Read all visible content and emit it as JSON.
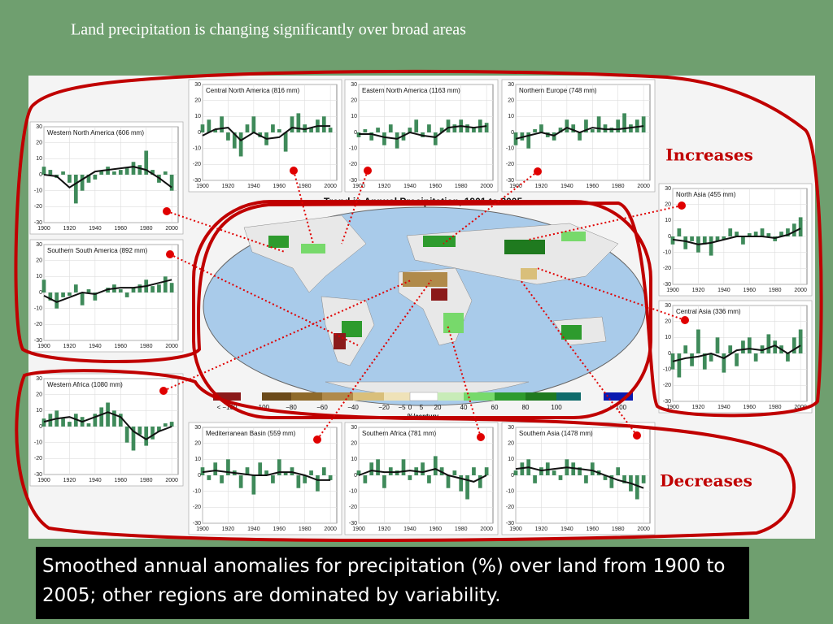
{
  "slide": {
    "title": "Land precipitation is changing significantly over broad areas",
    "caption": "Smoothed annual anomalies for precipitation (%) over land from 1900 to 2005; other regions are dominated by variability.",
    "annotations": [
      "Increases",
      "Decreases"
    ]
  },
  "map": {
    "title": "Trend in Annual Precipitation, 1901 to 2005",
    "axis_label": "%/century",
    "legend_labels": [
      "< −100",
      "−100",
      "−80",
      "−60",
      "−40",
      "−20",
      "−5",
      "0",
      "5",
      "20",
      "40",
      "60",
      "80",
      "100",
      "> 100"
    ]
  },
  "chart_data": [
    {
      "type": "bar",
      "title": "Western North America (606 mm)",
      "color": "#3f8a5a",
      "line_color": "#111111",
      "x": [
        1900,
        1905,
        1910,
        1915,
        1920,
        1925,
        1930,
        1935,
        1940,
        1945,
        1950,
        1955,
        1960,
        1965,
        1970,
        1975,
        1980,
        1985,
        1990,
        1995,
        2000
      ],
      "values": [
        5,
        3,
        -2,
        2,
        -5,
        -18,
        -10,
        -5,
        -3,
        2,
        5,
        2,
        3,
        4,
        8,
        6,
        15,
        3,
        -5,
        2,
        -10
      ],
      "smooth_x": [
        1900,
        1910,
        1920,
        1930,
        1940,
        1950,
        1960,
        1970,
        1980,
        1990,
        2000
      ],
      "smooth_values": [
        0,
        -1,
        -8,
        -3,
        2,
        3,
        4,
        5,
        3,
        -2,
        -8
      ],
      "xlim": [
        1900,
        2005
      ],
      "ylim": [
        -30,
        30
      ],
      "xticks": [
        1900,
        1920,
        1940,
        1960,
        1980,
        2000
      ],
      "yticks": [
        -30,
        -20,
        -10,
        0,
        10,
        20,
        30
      ]
    },
    {
      "type": "bar",
      "title": "Southern South America (892 mm)",
      "color": "#3f8a5a",
      "line_color": "#111111",
      "x": [
        1900,
        1905,
        1910,
        1915,
        1920,
        1925,
        1930,
        1935,
        1940,
        1945,
        1950,
        1955,
        1960,
        1965,
        1970,
        1975,
        1980,
        1985,
        1990,
        1995,
        2000
      ],
      "values": [
        8,
        -5,
        -10,
        -3,
        -2,
        5,
        -8,
        2,
        -5,
        0,
        3,
        5,
        2,
        -3,
        3,
        5,
        8,
        4,
        5,
        10,
        6
      ],
      "smooth_x": [
        1900,
        1910,
        1920,
        1930,
        1940,
        1950,
        1960,
        1970,
        1980,
        1990,
        2000
      ],
      "smooth_values": [
        -2,
        -6,
        -3,
        0,
        -1,
        2,
        3,
        3,
        4,
        6,
        8
      ],
      "xlim": [
        1900,
        2005
      ],
      "ylim": [
        -30,
        30
      ],
      "xticks": [
        1900,
        1920,
        1940,
        1960,
        1980,
        2000
      ],
      "yticks": [
        -30,
        -20,
        -10,
        0,
        10,
        20,
        30
      ]
    },
    {
      "type": "bar",
      "title": "Western Africa (1080 mm)",
      "color": "#3f8a5a",
      "line_color": "#111111",
      "x": [
        1900,
        1905,
        1910,
        1915,
        1920,
        1925,
        1930,
        1935,
        1940,
        1945,
        1950,
        1955,
        1960,
        1965,
        1970,
        1975,
        1980,
        1985,
        1990,
        1995,
        2000
      ],
      "values": [
        5,
        8,
        10,
        5,
        3,
        8,
        6,
        2,
        8,
        12,
        15,
        10,
        8,
        -10,
        -15,
        -5,
        -12,
        -8,
        -3,
        2,
        3
      ],
      "smooth_x": [
        1900,
        1910,
        1920,
        1930,
        1940,
        1950,
        1960,
        1970,
        1980,
        1990,
        2000
      ],
      "smooth_values": [
        3,
        5,
        6,
        3,
        6,
        9,
        6,
        -3,
        -8,
        -3,
        0
      ],
      "xlim": [
        1900,
        2005
      ],
      "ylim": [
        -30,
        30
      ],
      "xticks": [
        1900,
        1920,
        1940,
        1960,
        1980,
        2000
      ],
      "yticks": [
        -30,
        -20,
        -10,
        0,
        10,
        20,
        30
      ]
    },
    {
      "type": "bar",
      "title": "Central North America (816 mm)",
      "color": "#3f8a5a",
      "line_color": "#111111",
      "x": [
        1900,
        1905,
        1910,
        1915,
        1920,
        1925,
        1930,
        1935,
        1940,
        1945,
        1950,
        1955,
        1960,
        1965,
        1970,
        1975,
        1980,
        1985,
        1990,
        1995,
        2000
      ],
      "values": [
        5,
        8,
        2,
        10,
        -5,
        -10,
        -15,
        5,
        10,
        -3,
        -8,
        5,
        2,
        -12,
        10,
        12,
        5,
        3,
        8,
        10,
        3
      ],
      "smooth_x": [
        1900,
        1910,
        1920,
        1930,
        1940,
        1950,
        1960,
        1970,
        1980,
        1990,
        2000
      ],
      "smooth_values": [
        -2,
        2,
        3,
        -5,
        0,
        -4,
        -3,
        3,
        2,
        4,
        4
      ],
      "xlim": [
        1900,
        2005
      ],
      "ylim": [
        -30,
        30
      ],
      "xticks": [
        1900,
        1920,
        1940,
        1960,
        1980,
        2000
      ],
      "yticks": [
        -30,
        -20,
        -10,
        0,
        10,
        20,
        30
      ]
    },
    {
      "type": "bar",
      "title": "Eastern North America (1163 mm)",
      "color": "#3f8a5a",
      "line_color": "#111111",
      "x": [
        1900,
        1905,
        1910,
        1915,
        1920,
        1925,
        1930,
        1935,
        1940,
        1945,
        1950,
        1955,
        1960,
        1965,
        1970,
        1975,
        1980,
        1985,
        1990,
        1995,
        2000
      ],
      "values": [
        -3,
        2,
        -5,
        3,
        -8,
        5,
        -10,
        -5,
        3,
        8,
        -3,
        5,
        -8,
        3,
        8,
        5,
        8,
        5,
        3,
        8,
        6
      ],
      "smooth_x": [
        1900,
        1910,
        1920,
        1930,
        1940,
        1950,
        1960,
        1970,
        1980,
        1990,
        2000
      ],
      "smooth_values": [
        -1,
        -1,
        -3,
        -4,
        0,
        -2,
        -3,
        3,
        4,
        3,
        4
      ],
      "xlim": [
        1900,
        2005
      ],
      "ylim": [
        -30,
        30
      ],
      "xticks": [
        1900,
        1920,
        1940,
        1960,
        1980,
        2000
      ],
      "yticks": [
        -30,
        -20,
        -10,
        0,
        10,
        20,
        30
      ]
    },
    {
      "type": "bar",
      "title": "Northern Europe (748 mm)",
      "color": "#3f8a5a",
      "line_color": "#111111",
      "x": [
        1900,
        1905,
        1910,
        1915,
        1920,
        1925,
        1930,
        1935,
        1940,
        1945,
        1950,
        1955,
        1960,
        1965,
        1970,
        1975,
        1980,
        1985,
        1990,
        1995,
        2000
      ],
      "values": [
        -8,
        -5,
        -10,
        2,
        5,
        -3,
        -5,
        3,
        8,
        5,
        -5,
        8,
        2,
        10,
        5,
        3,
        8,
        12,
        5,
        8,
        10
      ],
      "smooth_x": [
        1900,
        1910,
        1920,
        1930,
        1940,
        1950,
        1960,
        1970,
        1980,
        1990,
        2000
      ],
      "smooth_values": [
        -4,
        -2,
        0,
        -2,
        3,
        0,
        3,
        2,
        2,
        3,
        4
      ],
      "xlim": [
        1900,
        2005
      ],
      "ylim": [
        -30,
        30
      ],
      "xticks": [
        1900,
        1920,
        1940,
        1960,
        1980,
        2000
      ],
      "yticks": [
        -30,
        -20,
        -10,
        0,
        10,
        20,
        30
      ]
    },
    {
      "type": "bar",
      "title": "North Asia (455 mm)",
      "color": "#3f8a5a",
      "line_color": "#111111",
      "x": [
        1900,
        1905,
        1910,
        1915,
        1920,
        1925,
        1930,
        1935,
        1940,
        1945,
        1950,
        1955,
        1960,
        1965,
        1970,
        1975,
        1980,
        1985,
        1990,
        1995,
        2000
      ],
      "values": [
        -5,
        5,
        -8,
        -3,
        -10,
        -5,
        -12,
        -3,
        -2,
        5,
        3,
        -5,
        2,
        3,
        5,
        2,
        -3,
        3,
        5,
        8,
        12
      ],
      "smooth_x": [
        1900,
        1910,
        1920,
        1930,
        1940,
        1950,
        1960,
        1970,
        1980,
        1990,
        2000
      ],
      "smooth_values": [
        -2,
        -3,
        -5,
        -4,
        -2,
        0,
        0,
        0,
        -1,
        1,
        5
      ],
      "xlim": [
        1900,
        2005
      ],
      "ylim": [
        -30,
        30
      ],
      "xticks": [
        1900,
        1920,
        1940,
        1960,
        1980,
        2000
      ],
      "yticks": [
        -30,
        -20,
        -10,
        0,
        10,
        20,
        30
      ]
    },
    {
      "type": "bar",
      "title": "Central Asia (336 mm)",
      "color": "#3f8a5a",
      "line_color": "#111111",
      "x": [
        1900,
        1905,
        1910,
        1915,
        1920,
        1925,
        1930,
        1935,
        1940,
        1945,
        1950,
        1955,
        1960,
        1965,
        1970,
        1975,
        1980,
        1985,
        1990,
        1995,
        2000
      ],
      "values": [
        -10,
        -15,
        5,
        -8,
        15,
        -10,
        -5,
        10,
        -12,
        5,
        -8,
        8,
        10,
        -5,
        5,
        12,
        8,
        5,
        -5,
        10,
        15
      ],
      "smooth_x": [
        1900,
        1910,
        1920,
        1930,
        1940,
        1950,
        1960,
        1970,
        1980,
        1990,
        2000
      ],
      "smooth_values": [
        -5,
        -3,
        -2,
        0,
        -3,
        2,
        3,
        2,
        5,
        0,
        5
      ],
      "xlim": [
        1900,
        2005
      ],
      "ylim": [
        -30,
        30
      ],
      "xticks": [
        1900,
        1920,
        1940,
        1960,
        1980,
        2000
      ],
      "yticks": [
        -30,
        -20,
        -10,
        0,
        10,
        20,
        30
      ]
    },
    {
      "type": "bar",
      "title": "Mediterranean Basin (559 mm)",
      "color": "#3f8a5a",
      "line_color": "#111111",
      "x": [
        1900,
        1905,
        1910,
        1915,
        1920,
        1925,
        1930,
        1935,
        1940,
        1945,
        1950,
        1955,
        1960,
        1965,
        1970,
        1975,
        1980,
        1985,
        1990,
        1995,
        2000
      ],
      "values": [
        5,
        -3,
        8,
        -5,
        10,
        3,
        -8,
        5,
        -12,
        8,
        3,
        -5,
        10,
        2,
        5,
        -8,
        -5,
        3,
        -10,
        5,
        -3
      ],
      "smooth_x": [
        1900,
        1910,
        1920,
        1930,
        1940,
        1950,
        1960,
        1970,
        1980,
        1990,
        2000
      ],
      "smooth_values": [
        2,
        3,
        2,
        1,
        0,
        0,
        2,
        2,
        0,
        -3,
        -3
      ],
      "xlim": [
        1900,
        2005
      ],
      "ylim": [
        -30,
        30
      ],
      "xticks": [
        1900,
        1920,
        1940,
        1960,
        1980,
        2000
      ],
      "yticks": [
        -30,
        -20,
        -10,
        0,
        10,
        20,
        30
      ]
    },
    {
      "type": "bar",
      "title": "Southern Africa (781 mm)",
      "color": "#3f8a5a",
      "line_color": "#111111",
      "x": [
        1900,
        1905,
        1910,
        1915,
        1920,
        1925,
        1930,
        1935,
        1940,
        1945,
        1950,
        1955,
        1960,
        1965,
        1970,
        1975,
        1980,
        1985,
        1990,
        1995,
        2000
      ],
      "values": [
        3,
        -5,
        8,
        10,
        -8,
        5,
        3,
        10,
        -3,
        5,
        8,
        -5,
        12,
        5,
        -8,
        3,
        -10,
        -15,
        5,
        -8,
        5
      ],
      "smooth_x": [
        1900,
        1910,
        1920,
        1930,
        1940,
        1950,
        1960,
        1970,
        1980,
        1990,
        2000
      ],
      "smooth_values": [
        0,
        3,
        2,
        2,
        3,
        2,
        4,
        0,
        -2,
        -4,
        0
      ],
      "xlim": [
        1900,
        2005
      ],
      "ylim": [
        -30,
        30
      ],
      "xticks": [
        1900,
        1920,
        1940,
        1960,
        1980,
        2000
      ],
      "yticks": [
        -30,
        -20,
        -10,
        0,
        10,
        20,
        30
      ]
    },
    {
      "type": "bar",
      "title": "Southern Asia (1478 mm)",
      "color": "#3f8a5a",
      "line_color": "#111111",
      "x": [
        1900,
        1905,
        1910,
        1915,
        1920,
        1925,
        1930,
        1935,
        1940,
        1945,
        1950,
        1955,
        1960,
        1965,
        1970,
        1975,
        1980,
        1985,
        1990,
        1995,
        2000
      ],
      "values": [
        3,
        8,
        10,
        -5,
        5,
        8,
        3,
        -3,
        10,
        8,
        5,
        -5,
        8,
        3,
        -3,
        -8,
        5,
        -5,
        -10,
        -15,
        -5
      ],
      "smooth_x": [
        1900,
        1910,
        1920,
        1930,
        1940,
        1950,
        1960,
        1970,
        1980,
        1990,
        2000
      ],
      "smooth_values": [
        4,
        5,
        3,
        4,
        5,
        4,
        3,
        0,
        -3,
        -5,
        -8
      ],
      "xlim": [
        1900,
        2005
      ],
      "ylim": [
        -30,
        30
      ],
      "xticks": [
        1900,
        1920,
        1940,
        1960,
        1980,
        2000
      ],
      "yticks": [
        -30,
        -20,
        -10,
        0,
        10,
        20,
        30
      ]
    }
  ]
}
